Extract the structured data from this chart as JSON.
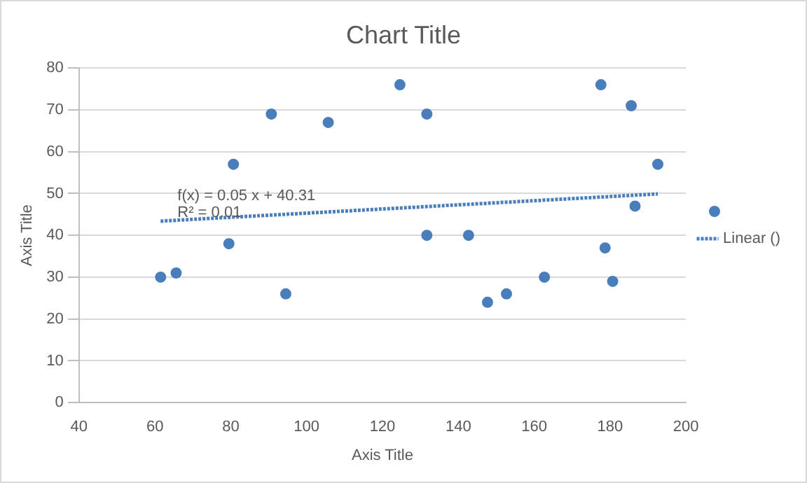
{
  "chart_data": {
    "type": "scatter",
    "title": "Chart Title",
    "xlabel": "Axis Title",
    "ylabel": "Axis Title",
    "xlim": [
      40,
      200
    ],
    "xticks": [
      40,
      60,
      80,
      100,
      120,
      140,
      160,
      180,
      200
    ],
    "ylim": [
      0,
      80
    ],
    "yticks": [
      0,
      10,
      20,
      30,
      40,
      50,
      60,
      70,
      80
    ],
    "grid": "y",
    "legend": "right",
    "marker": "circle",
    "annotations": [
      "f(x) = 0.05 x + 40.31",
      "R² = 0.01"
    ],
    "series": [
      {
        "color": "#4a7ebb",
        "x": [
          61.5,
          65.6,
          79.5,
          80.7,
          90.7,
          94.5,
          105.7,
          124.6,
          131.7,
          131.7,
          142.7,
          147.7,
          152.7,
          162.7,
          177.6,
          178.7,
          180.7,
          185.6,
          186.6,
          192.6
        ],
        "values": [
          30,
          31,
          38,
          57,
          69,
          26,
          67,
          76,
          69,
          40,
          40,
          24,
          26,
          30,
          76,
          37,
          29,
          71,
          47,
          57
        ]
      },
      {
        "name": "Linear ()",
        "type": "line",
        "color": "#4a7ebb",
        "line_style": "dotted",
        "marker": "none",
        "x": [
          61.5,
          192.6
        ],
        "values": [
          43.4,
          49.9
        ]
      }
    ]
  }
}
